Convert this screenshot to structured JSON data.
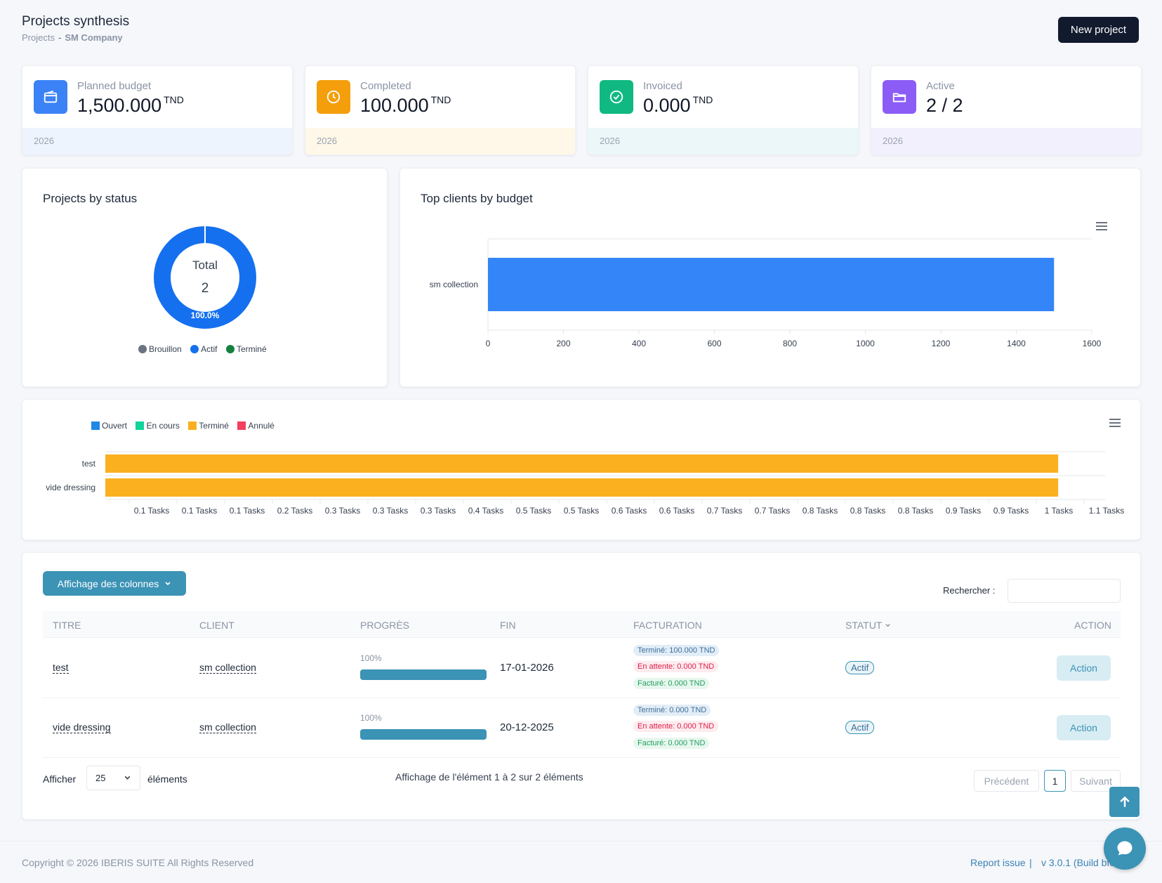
{
  "header": {
    "title": "Projects synthesis",
    "breadcrumb": {
      "root": "Projects",
      "sep": "-",
      "current": "SM Company"
    },
    "new_project_label": "New project"
  },
  "kpis": [
    {
      "label": "Planned budget",
      "value": "1,500.000",
      "unit": "TND",
      "year": "2026",
      "icon": "wallet-icon",
      "color": "#3b82f6",
      "foot_bg": "#eef4fd"
    },
    {
      "label": "Completed",
      "value": "100.000",
      "unit": "TND",
      "year": "2026",
      "icon": "clock-icon",
      "color": "#f59e0b",
      "foot_bg": "#fff8e8"
    },
    {
      "label": "Invoiced",
      "value": "0.000",
      "unit": "TND",
      "year": "2026",
      "icon": "check-circle-icon",
      "color": "#10b981",
      "foot_bg": "#ebf7f8"
    },
    {
      "label": "Active",
      "value": "2 / 2",
      "unit": "",
      "year": "2026",
      "icon": "folder-icon",
      "color": "#8b5cf6",
      "foot_bg": "#f3f0fd"
    }
  ],
  "status_chart": {
    "title": "Projects by status",
    "center_label": "Total",
    "center_value": "2",
    "percent_label": "100.0%",
    "legend": [
      {
        "name": "Brouillon",
        "color": "#6b7280"
      },
      {
        "name": "Actif",
        "color": "#1570ef"
      },
      {
        "name": "Terminé",
        "color": "#15803d"
      }
    ]
  },
  "clients_chart": {
    "title": "Top clients by budget"
  },
  "task_chart": {
    "legend": [
      {
        "name": "Ouvert",
        "color": "#1e88e5"
      },
      {
        "name": "En cours",
        "color": "#10d39a"
      },
      {
        "name": "Terminé",
        "color": "#fbb020"
      },
      {
        "name": "Annulé",
        "color": "#f43f5e"
      }
    ]
  },
  "chart_data": [
    {
      "type": "pie",
      "title": "Projects by status",
      "categories": [
        "Brouillon",
        "Actif",
        "Terminé"
      ],
      "values": [
        0,
        2,
        0
      ]
    },
    {
      "type": "bar",
      "orientation": "horizontal",
      "title": "Top clients by budget",
      "categories": [
        "sm collection"
      ],
      "values": [
        1500
      ],
      "xlim": [
        0,
        1600
      ],
      "xticks": [
        "0",
        "200",
        "400",
        "600",
        "800",
        "1000",
        "1200",
        "1400",
        "1600"
      ],
      "color": "#3385f8"
    },
    {
      "type": "bar",
      "orientation": "horizontal",
      "stacked": true,
      "categories": [
        "test",
        "vide dressing"
      ],
      "series": [
        {
          "name": "Ouvert",
          "values": [
            0,
            0
          ]
        },
        {
          "name": "En cours",
          "values": [
            0,
            0
          ]
        },
        {
          "name": "Terminé",
          "values": [
            1,
            1
          ]
        },
        {
          "name": "Annulé",
          "values": [
            0,
            0
          ]
        }
      ],
      "xlim": [
        0,
        1.05
      ],
      "xticks": [
        "0.1 Tasks",
        "0.1 Tasks",
        "0.1 Tasks",
        "0.2 Tasks",
        "0.3 Tasks",
        "0.3 Tasks",
        "0.3 Tasks",
        "0.4 Tasks",
        "0.5 Tasks",
        "0.5 Tasks",
        "0.6 Tasks",
        "0.6 Tasks",
        "0.7 Tasks",
        "0.7 Tasks",
        "0.8 Tasks",
        "0.8 Tasks",
        "0.8 Tasks",
        "0.9 Tasks",
        "0.9 Tasks",
        "1 Tasks",
        "1.1 Tasks"
      ],
      "legend": "top-left"
    }
  ],
  "table": {
    "columns_button": "Affichage des colonnes",
    "search_label": "Rechercher :",
    "headers": [
      "TITRE",
      "CLIENT",
      "PROGRÈS",
      "FIN",
      "FACTURATION",
      "STATUT",
      "ACTION"
    ],
    "rows": [
      {
        "title": "test",
        "client": "sm collection",
        "progress_label": "100%",
        "progress": 1.0,
        "end": "17-01-2026",
        "billing": [
          "Terminé: 100.000 TND",
          "En attente: 0.000 TND",
          "Facturé: 0.000 TND"
        ],
        "status": "Actif",
        "action": "Action"
      },
      {
        "title": "vide dressing",
        "client": "sm collection",
        "progress_label": "100%",
        "progress": 1.0,
        "end": "20-12-2025",
        "billing": [
          "Terminé: 0.000 TND",
          "En attente: 0.000 TND",
          "Facturé: 0.000 TND"
        ],
        "status": "Actif",
        "action": "Action"
      }
    ],
    "show_label": "Afficher",
    "page_size": "25",
    "elements_label": "éléments",
    "info": "Affichage de l'élément 1 à 2 sur 2 éléments",
    "prev": "Précédent",
    "page": "1",
    "next": "Suivant"
  },
  "footer": {
    "copyright": "Copyright © 2026 IBERIS SUITE All Rights Reserved",
    "report": "Report issue",
    "sep": "|",
    "version": "v 3.0.1 (Build bf0"
  }
}
